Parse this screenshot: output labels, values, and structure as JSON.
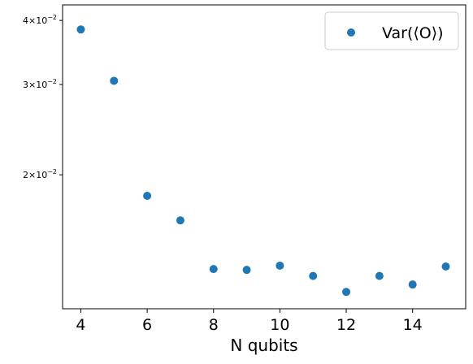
{
  "chart_data": {
    "type": "scatter",
    "xlabel": "N qubits",
    "ylabel": "",
    "xlim": [
      3.45,
      15.6
    ],
    "ylim": [
      0.01096,
      0.04289
    ],
    "yscale": "log",
    "x_ticks": [
      4,
      6,
      8,
      10,
      12,
      14
    ],
    "x_tick_labels": [
      "4",
      "6",
      "8",
      "10",
      "12",
      "14"
    ],
    "y_ticks": [
      {
        "value": 0.04,
        "base": "4",
        "exp": "−2"
      },
      {
        "value": 0.03,
        "base": "3",
        "exp": "−2"
      },
      {
        "value": 0.02,
        "base": "2",
        "exp": "−2"
      }
    ],
    "grid": false,
    "legend_position": "top-right",
    "series": [
      {
        "name": "Var(⟨O⟩)",
        "color": "#1f77b4",
        "x": [
          4,
          5,
          6,
          7,
          8,
          9,
          10,
          11,
          12,
          13,
          14,
          15
        ],
        "y": [
          0.0384,
          0.0305,
          0.0182,
          0.0163,
          0.0131,
          0.01305,
          0.0133,
          0.0127,
          0.01182,
          0.0127,
          0.01222,
          0.01325
        ]
      }
    ]
  }
}
